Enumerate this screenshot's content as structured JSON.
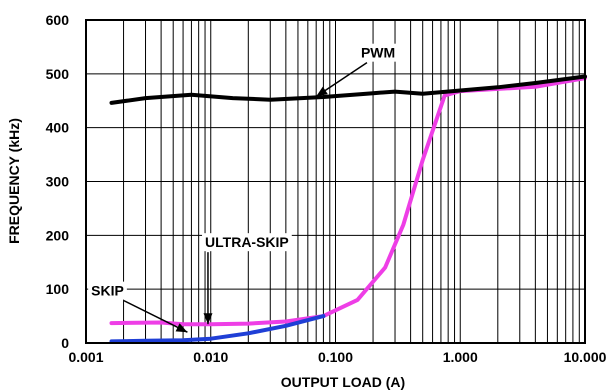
{
  "chart_data": {
    "type": "line",
    "xscale": "log",
    "xlim": [
      0.001,
      10
    ],
    "ylim": [
      0,
      600
    ],
    "grid": true,
    "xlabel": "OUTPUT LOAD (A)",
    "ylabel": "FREQUENCY (kHz)",
    "xticks": [
      {
        "value": 0.001,
        "label": "0.001"
      },
      {
        "value": 0.01,
        "label": "0.010"
      },
      {
        "value": 0.1,
        "label": "0.100"
      },
      {
        "value": 1,
        "label": "1.000"
      },
      {
        "value": 10,
        "label": "10.000"
      }
    ],
    "yticks": [
      {
        "value": 0,
        "label": "0"
      },
      {
        "value": 100,
        "label": "100"
      },
      {
        "value": 200,
        "label": "200"
      },
      {
        "value": 300,
        "label": "300"
      },
      {
        "value": 400,
        "label": "400"
      },
      {
        "value": 500,
        "label": "500"
      },
      {
        "value": 600,
        "label": "600"
      }
    ],
    "series": [
      {
        "name": "PWM",
        "color": "#000000",
        "x": [
          0.0016,
          0.003,
          0.007,
          0.015,
          0.03,
          0.08,
          0.2,
          0.3,
          0.5,
          1.0,
          2.0,
          4.0,
          10.0
        ],
        "y": [
          446,
          455,
          461,
          455,
          452,
          457,
          464,
          467,
          463,
          469,
          475,
          483,
          495
        ]
      },
      {
        "name": "SKIP",
        "color": "#1f3fd6",
        "x": [
          0.0016,
          0.003,
          0.006,
          0.01,
          0.02,
          0.04,
          0.08
        ],
        "y": [
          3,
          4,
          5,
          8,
          18,
          32,
          50
        ]
      },
      {
        "name": "ULTRA-SKIP",
        "color": "#ee3ee6",
        "x": [
          0.0016,
          0.004,
          0.006,
          0.01,
          0.02,
          0.04,
          0.08,
          0.15,
          0.25,
          0.35,
          0.5,
          0.75,
          1.0,
          2.0,
          4.0,
          10.0
        ],
        "y": [
          37,
          38,
          35,
          35,
          36,
          40,
          50,
          80,
          140,
          220,
          340,
          460,
          468,
          472,
          476,
          492
        ]
      }
    ],
    "annotations": [
      {
        "text": "PWM",
        "label_x": 0.16,
        "label_y": 530,
        "arrow_x": 0.07,
        "arrow_y": 458
      },
      {
        "text": "ULTRA-SKIP",
        "label_x": 0.009,
        "label_y": 178,
        "arrow_x": 0.0095,
        "arrow_y": 35
      },
      {
        "text": "SKIP",
        "label_x": 0.0011,
        "label_y": 88,
        "arrow_x": 0.0065,
        "arrow_y": 20
      }
    ]
  }
}
